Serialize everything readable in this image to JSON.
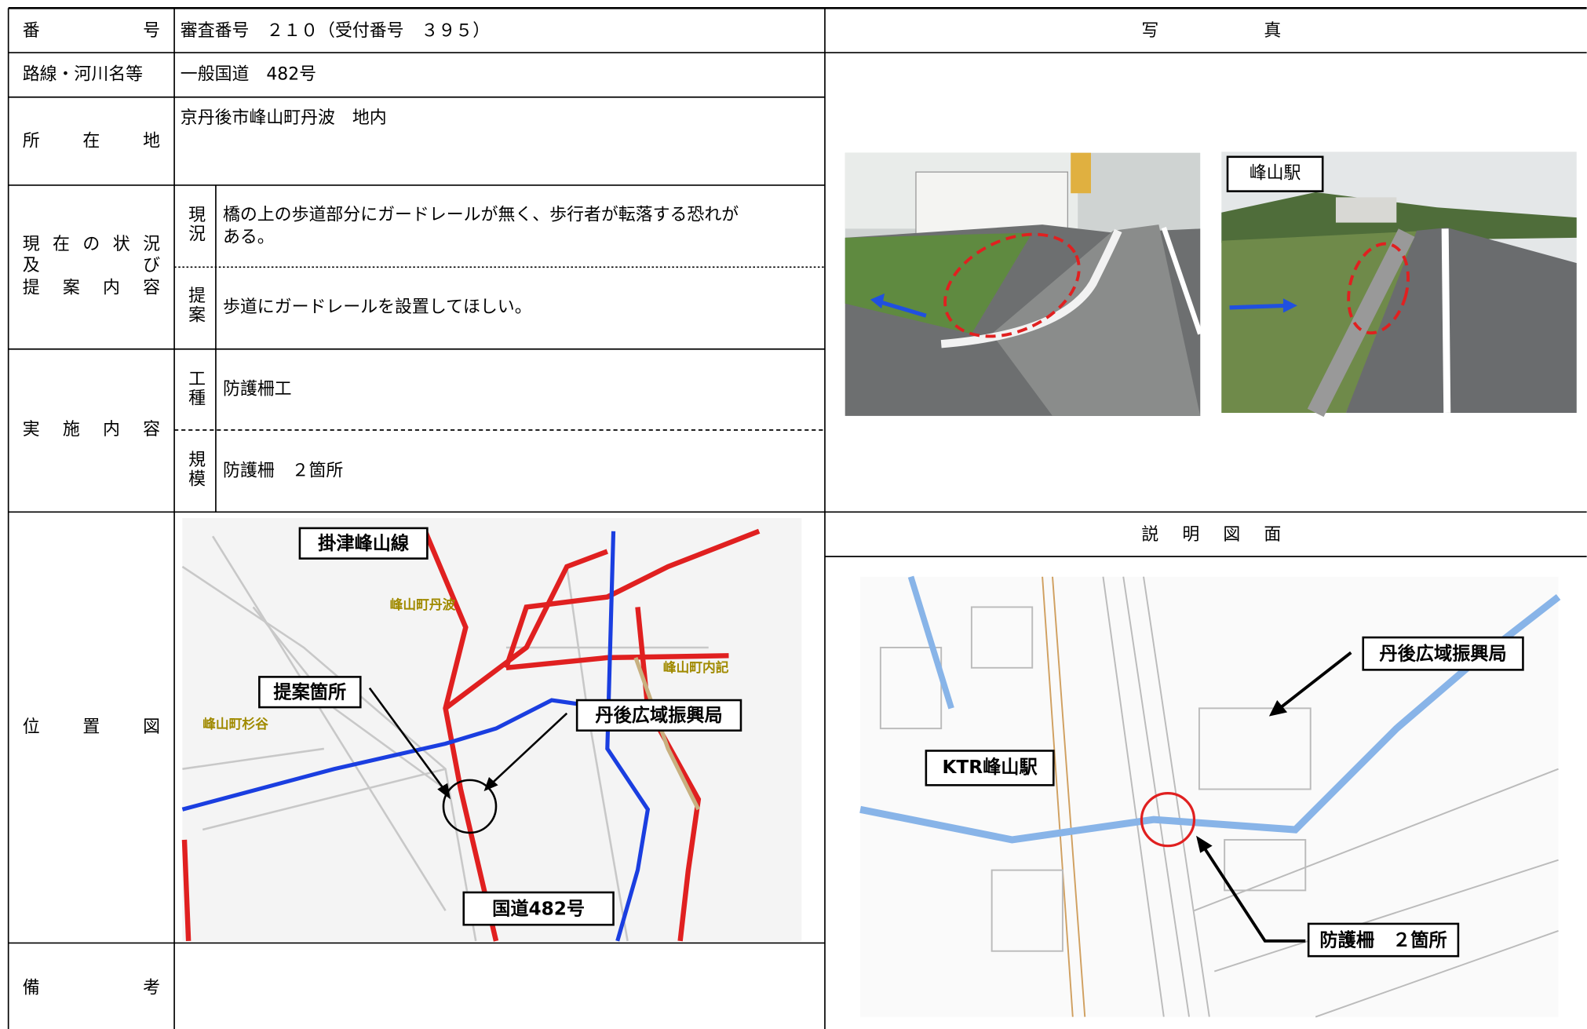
{
  "header": {
    "number_label": "番号",
    "number_value": "審査番号　２１０（受付番号　３９５）",
    "route_label": "路線・河川名等",
    "route_value": "一般国道　482号",
    "location_label": "所在地",
    "location_value": "京丹後市峰山町丹波　地内"
  },
  "status": {
    "label_lines": [
      "現在の状況",
      "及び",
      "提案内容"
    ],
    "current_label": "現況",
    "current_lines": [
      "橋の上の歩道部分にガードレールが無く、歩行者が転落する恐れが",
      "ある。"
    ],
    "proposal_label": "提案",
    "proposal_value": "歩道にガードレールを設置してほしい。"
  },
  "implementation": {
    "label": "実施内容",
    "type_label": "工種",
    "type_value": "防護柵工",
    "scale_label": "規模",
    "scale_value": "防護柵　２箇所"
  },
  "location_map": {
    "label": "位置図",
    "callouts": [
      "掛津峰山線",
      "提案箇所",
      "丹後広域振興局",
      "国道482号"
    ],
    "places": [
      "峰山町丹波",
      "峰山町杉谷",
      "峰山町内記"
    ]
  },
  "remarks": {
    "label": "備考"
  },
  "photos": {
    "header": "写真",
    "station_label": "峰山駅"
  },
  "diagram": {
    "header": "説明図面",
    "callouts": [
      "丹後広域振興局",
      "KTR峰山駅",
      "防護柵　２箇所"
    ]
  }
}
